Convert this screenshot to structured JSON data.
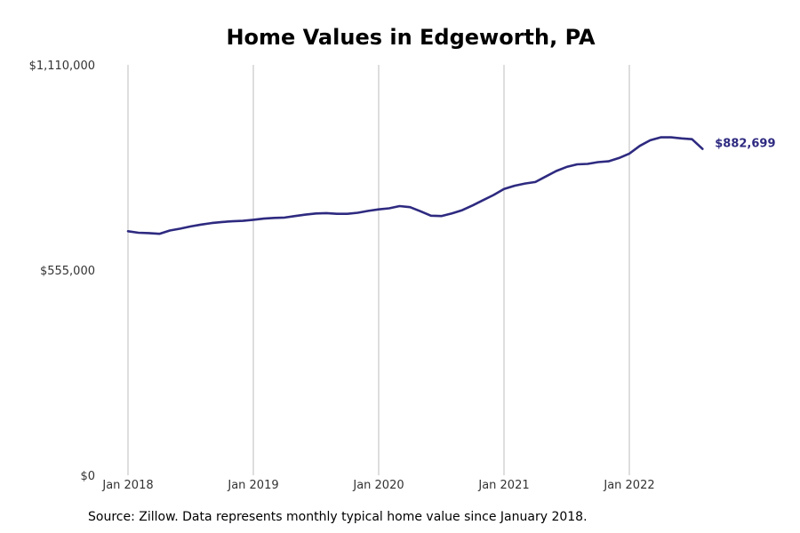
{
  "chart_data": {
    "type": "line",
    "title": "Home Values in Edgeworth, PA",
    "xlabel": "",
    "ylabel": "",
    "x_ticks": [
      "Jan 2018",
      "Jan 2019",
      "Jan 2020",
      "Jan 2021",
      "Jan 2022"
    ],
    "y_ticks": [
      "$1,110,000",
      "$555,000",
      "$0"
    ],
    "ylim": [
      0,
      1110000
    ],
    "grid": "vertical",
    "line_color": "#2e2a80",
    "end_label": "$882,699",
    "series": [
      {
        "x": [
          "2018-01",
          "2018-02",
          "2018-03",
          "2018-04",
          "2018-05",
          "2018-06",
          "2018-07",
          "2018-08",
          "2018-09",
          "2018-10",
          "2018-11",
          "2018-12",
          "2019-01",
          "2019-02",
          "2019-03",
          "2019-04",
          "2019-05",
          "2019-06",
          "2019-07",
          "2019-08",
          "2019-09",
          "2019-10",
          "2019-11",
          "2019-12",
          "2020-01",
          "2020-02",
          "2020-03",
          "2020-04",
          "2020-05",
          "2020-06",
          "2020-07",
          "2020-08",
          "2020-09",
          "2020-10",
          "2020-11",
          "2020-12",
          "2021-01",
          "2021-02",
          "2021-03",
          "2021-04",
          "2021-05",
          "2021-06",
          "2021-07",
          "2021-08",
          "2021-09",
          "2021-10",
          "2021-11",
          "2021-12",
          "2022-01",
          "2022-02",
          "2022-03",
          "2022-04",
          "2022-05",
          "2022-06",
          "2022-07",
          "2022-08"
        ],
        "values": [
          660000,
          656000,
          655000,
          653000,
          662000,
          667000,
          673000,
          678000,
          682000,
          685000,
          687000,
          688000,
          691000,
          694000,
          696000,
          697000,
          701000,
          705000,
          708000,
          709000,
          707000,
          707000,
          710000,
          715000,
          719000,
          722000,
          728000,
          725000,
          714000,
          702000,
          701000,
          708000,
          717000,
          730000,
          744000,
          758000,
          774000,
          783000,
          789000,
          793000,
          808000,
          823000,
          834000,
          841000,
          842000,
          847000,
          849000,
          858000,
          870000,
          891000,
          906000,
          914000,
          914000,
          911000,
          909000,
          882699
        ]
      }
    ]
  },
  "footer": {
    "source": "Source: Zillow. Data represents monthly typical home value since January 2018."
  }
}
